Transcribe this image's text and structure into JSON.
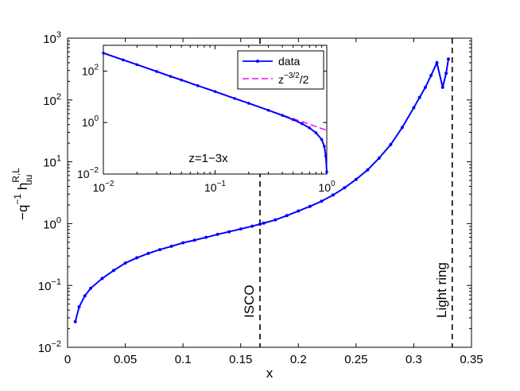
{
  "chart_data": [
    {
      "type": "line",
      "role": "main",
      "xlabel": "x",
      "ylabel": {
        "base": "−q",
        "sup1": "−1",
        "h": " h",
        "sup2": "R,L",
        "sub2": "uu"
      },
      "xscale": "linear",
      "yscale": "log",
      "xlim": [
        0,
        0.35
      ],
      "ylim": [
        0.01,
        1000
      ],
      "x_ticks": [
        0,
        0.05,
        0.1,
        0.15,
        0.2,
        0.25,
        0.3,
        0.35
      ],
      "x_tick_labels": [
        "0",
        "0.05",
        "0.1",
        "0.15",
        "0.2",
        "0.25",
        "0.3",
        "0.35"
      ],
      "y_ticks": [
        {
          "value": 0.01,
          "base": "10",
          "exp": "−2"
        },
        {
          "value": 0.1,
          "base": "10",
          "exp": "−1"
        },
        {
          "value": 1,
          "base": "10",
          "exp": "0"
        },
        {
          "value": 10,
          "base": "10",
          "exp": "1"
        },
        {
          "value": 100,
          "base": "10",
          "exp": "2"
        },
        {
          "value": 1000,
          "base": "10",
          "exp": "3"
        }
      ],
      "grid": false,
      "series": [
        {
          "color": "#0000ff",
          "marker": "dot",
          "x": [
            0.0067,
            0.01,
            0.015,
            0.02,
            0.03,
            0.04,
            0.05,
            0.06,
            0.07,
            0.08,
            0.09,
            0.1,
            0.11,
            0.12,
            0.13,
            0.14,
            0.15,
            0.16,
            0.1667,
            0.17,
            0.18,
            0.19,
            0.2,
            0.21,
            0.22,
            0.23,
            0.24,
            0.25,
            0.26,
            0.27,
            0.28,
            0.29,
            0.3,
            0.305,
            0.31,
            0.315,
            0.32,
            0.325,
            0.328,
            0.33
          ],
          "y": [
            0.026,
            0.045,
            0.068,
            0.09,
            0.13,
            0.175,
            0.23,
            0.28,
            0.33,
            0.38,
            0.43,
            0.49,
            0.54,
            0.6,
            0.67,
            0.74,
            0.82,
            0.91,
            0.98,
            1.02,
            1.15,
            1.35,
            1.6,
            1.9,
            2.3,
            2.9,
            3.8,
            5.2,
            7.4,
            11.5,
            19,
            36,
            75,
            110,
            160,
            250,
            400,
            160,
            270,
            460
          ]
        }
      ],
      "vlines": [
        {
          "x": 0.1667,
          "label": "ISCO",
          "style": "dashed"
        },
        {
          "x": 0.3333,
          "label": "Light ring",
          "style": "dashed"
        }
      ]
    },
    {
      "type": "line",
      "role": "inset",
      "xscale": "log",
      "yscale": "log",
      "xlim": [
        0.01,
        1
      ],
      "ylim": [
        0.01,
        1000
      ],
      "x_ticks": [
        {
          "value": 0.01,
          "base": "10",
          "exp": "−2"
        },
        {
          "value": 0.1,
          "base": "10",
          "exp": "−1"
        },
        {
          "value": 1,
          "base": "10",
          "exp": "0"
        }
      ],
      "y_ticks": [
        {
          "value": 0.01,
          "base": "10",
          "exp": "−2"
        },
        {
          "value": 1,
          "base": "10",
          "exp": "0"
        },
        {
          "value": 100,
          "base": "10",
          "exp": "2"
        }
      ],
      "annotation": "z=1−3x",
      "legend_position": "top-right",
      "series": [
        {
          "name": "data",
          "color": "#0000ff",
          "marker": "dot",
          "x": [
            0.01,
            0.015,
            0.02,
            0.03,
            0.04,
            0.05,
            0.07,
            0.1,
            0.15,
            0.2,
            0.3,
            0.4,
            0.5,
            0.6,
            0.7,
            0.8,
            0.9,
            0.95,
            0.98,
            1.0
          ],
          "y": [
            500,
            272,
            177,
            96,
            62,
            45,
            27,
            16,
            8.6,
            5.6,
            3,
            1.9,
            1.3,
            0.9,
            0.62,
            0.4,
            0.22,
            0.12,
            0.05,
            0.012
          ]
        },
        {
          "name": "z^{-3/2}/2",
          "legend_base": "z",
          "legend_sup": "−3/2",
          "legend_tail": "/2",
          "color": "#ff00ff",
          "style": "dashed",
          "x": [
            0.01,
            1
          ],
          "y": [
            500,
            0.5
          ]
        }
      ]
    }
  ]
}
